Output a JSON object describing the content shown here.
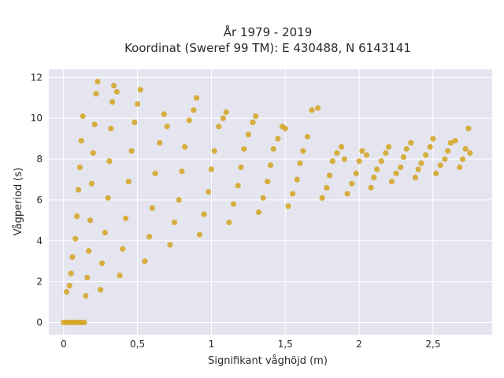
{
  "chart_data": {
    "type": "scatter",
    "title_line1": "År 1979 - 2019",
    "title_line2": "Koordinat (Sweref 99 TM): E 430488, N 6143141",
    "xlabel": "Signifikant våghöjd (m)",
    "ylabel": "Vågperiod (s)",
    "xlim": [
      -0.1,
      2.9
    ],
    "ylim": [
      -0.6,
      12.4
    ],
    "x_ticks": [
      0,
      0.5,
      1,
      1.5,
      2,
      2.5
    ],
    "x_tick_labels": [
      "0",
      "0,5",
      "1",
      "1,5",
      "2",
      "2,5"
    ],
    "y_ticks": [
      0,
      2,
      4,
      6,
      8,
      10,
      12
    ],
    "y_tick_labels": [
      "0",
      "2",
      "4",
      "6",
      "8",
      "10",
      "12"
    ],
    "grid": true,
    "marker_color": "#D4A420",
    "plot_background": "#E5E5F0",
    "grid_color": "#ffffff",
    "points": [
      [
        0.0,
        0.0
      ],
      [
        0.02,
        0.0
      ],
      [
        0.04,
        0.0
      ],
      [
        0.06,
        0.0
      ],
      [
        0.08,
        0.0
      ],
      [
        0.1,
        0.0
      ],
      [
        0.12,
        0.0
      ],
      [
        0.14,
        0.0
      ],
      [
        0.02,
        1.5
      ],
      [
        0.04,
        1.8
      ],
      [
        0.05,
        2.4
      ],
      [
        0.06,
        3.2
      ],
      [
        0.08,
        4.1
      ],
      [
        0.09,
        5.2
      ],
      [
        0.1,
        6.5
      ],
      [
        0.11,
        7.6
      ],
      [
        0.12,
        8.9
      ],
      [
        0.13,
        10.1
      ],
      [
        0.15,
        1.3
      ],
      [
        0.16,
        2.2
      ],
      [
        0.17,
        3.5
      ],
      [
        0.18,
        5.0
      ],
      [
        0.19,
        6.8
      ],
      [
        0.2,
        8.3
      ],
      [
        0.21,
        9.7
      ],
      [
        0.22,
        11.2
      ],
      [
        0.23,
        11.8
      ],
      [
        0.25,
        1.6
      ],
      [
        0.26,
        2.9
      ],
      [
        0.28,
        4.4
      ],
      [
        0.3,
        6.1
      ],
      [
        0.31,
        7.9
      ],
      [
        0.32,
        9.5
      ],
      [
        0.33,
        10.8
      ],
      [
        0.34,
        11.6
      ],
      [
        0.36,
        11.3
      ],
      [
        0.38,
        2.3
      ],
      [
        0.4,
        3.6
      ],
      [
        0.42,
        5.1
      ],
      [
        0.44,
        6.9
      ],
      [
        0.46,
        8.4
      ],
      [
        0.48,
        9.8
      ],
      [
        0.5,
        10.7
      ],
      [
        0.52,
        11.4
      ],
      [
        0.55,
        3.0
      ],
      [
        0.58,
        4.2
      ],
      [
        0.6,
        5.6
      ],
      [
        0.62,
        7.3
      ],
      [
        0.65,
        8.8
      ],
      [
        0.68,
        10.2
      ],
      [
        0.7,
        9.6
      ],
      [
        0.72,
        3.8
      ],
      [
        0.75,
        4.9
      ],
      [
        0.78,
        6.0
      ],
      [
        0.8,
        7.4
      ],
      [
        0.82,
        8.6
      ],
      [
        0.85,
        9.9
      ],
      [
        0.88,
        10.4
      ],
      [
        0.9,
        11.0
      ],
      [
        0.92,
        4.3
      ],
      [
        0.95,
        5.3
      ],
      [
        0.98,
        6.4
      ],
      [
        1.0,
        7.5
      ],
      [
        1.02,
        8.4
      ],
      [
        1.05,
        9.6
      ],
      [
        1.08,
        10.0
      ],
      [
        1.1,
        10.3
      ],
      [
        1.12,
        4.9
      ],
      [
        1.15,
        5.8
      ],
      [
        1.18,
        6.7
      ],
      [
        1.2,
        7.6
      ],
      [
        1.22,
        8.5
      ],
      [
        1.25,
        9.2
      ],
      [
        1.28,
        9.8
      ],
      [
        1.3,
        10.1
      ],
      [
        1.32,
        5.4
      ],
      [
        1.35,
        6.1
      ],
      [
        1.38,
        6.9
      ],
      [
        1.4,
        7.7
      ],
      [
        1.42,
        8.5
      ],
      [
        1.45,
        9.0
      ],
      [
        1.48,
        9.6
      ],
      [
        1.5,
        9.5
      ],
      [
        1.52,
        5.7
      ],
      [
        1.55,
        6.3
      ],
      [
        1.58,
        7.0
      ],
      [
        1.6,
        7.8
      ],
      [
        1.62,
        8.4
      ],
      [
        1.65,
        9.1
      ],
      [
        1.68,
        10.4
      ],
      [
        1.72,
        10.5
      ],
      [
        1.75,
        6.1
      ],
      [
        1.78,
        6.6
      ],
      [
        1.8,
        7.2
      ],
      [
        1.82,
        7.9
      ],
      [
        1.85,
        8.3
      ],
      [
        1.88,
        8.6
      ],
      [
        1.9,
        8.0
      ],
      [
        1.92,
        6.3
      ],
      [
        1.95,
        6.8
      ],
      [
        1.98,
        7.3
      ],
      [
        2.0,
        7.9
      ],
      [
        2.02,
        8.4
      ],
      [
        2.05,
        8.2
      ],
      [
        2.08,
        6.6
      ],
      [
        2.1,
        7.1
      ],
      [
        2.12,
        7.5
      ],
      [
        2.15,
        7.9
      ],
      [
        2.18,
        8.3
      ],
      [
        2.2,
        8.6
      ],
      [
        2.22,
        6.9
      ],
      [
        2.25,
        7.3
      ],
      [
        2.28,
        7.6
      ],
      [
        2.3,
        8.1
      ],
      [
        2.32,
        8.5
      ],
      [
        2.35,
        8.8
      ],
      [
        2.38,
        7.1
      ],
      [
        2.4,
        7.5
      ],
      [
        2.42,
        7.8
      ],
      [
        2.45,
        8.2
      ],
      [
        2.48,
        8.6
      ],
      [
        2.5,
        9.0
      ],
      [
        2.52,
        7.3
      ],
      [
        2.55,
        7.7
      ],
      [
        2.58,
        8.0
      ],
      [
        2.6,
        8.4
      ],
      [
        2.62,
        8.8
      ],
      [
        2.65,
        8.9
      ],
      [
        2.68,
        7.6
      ],
      [
        2.7,
        8.0
      ],
      [
        2.72,
        8.5
      ],
      [
        2.74,
        9.5
      ],
      [
        2.75,
        8.3
      ]
    ]
  }
}
